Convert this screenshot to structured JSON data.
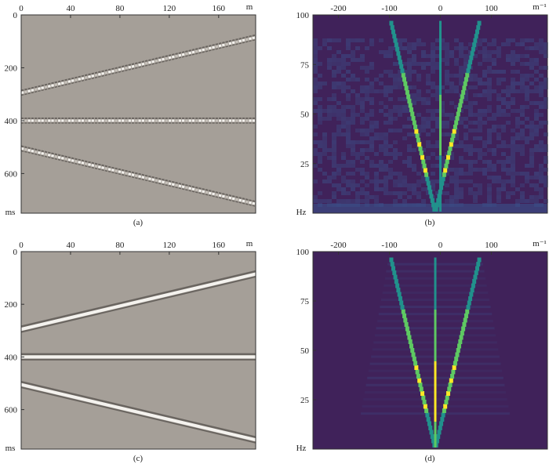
{
  "colors": {
    "seismic_background": "#a59f98",
    "event_bright": "#f4f2ee",
    "event_dark": "#6a6560",
    "fk_background": "#40225a",
    "fk_noise": "#3b528b",
    "fk_medium": "#21918c",
    "fk_high": "#5ec962",
    "fk_peak": "#fde725",
    "axis": "#333333"
  },
  "chart_data": [
    {
      "type": "heatmap",
      "panel": "a",
      "caption": "(a)",
      "content": "seismic section, noisy aliased events",
      "x_axis": {
        "unit": "m",
        "range": [
          0,
          190
        ],
        "ticks": [
          0,
          40,
          80,
          120,
          160
        ]
      },
      "y_axis": {
        "unit": "ms",
        "range": [
          0,
          750
        ],
        "ticks": [
          0,
          200,
          400,
          600
        ]
      },
      "events": [
        {
          "kind": "linear",
          "t_at_x0": 295,
          "t_at_xmax": 85
        },
        {
          "kind": "flat",
          "t_at_x0": 400,
          "t_at_xmax": 400
        },
        {
          "kind": "linear",
          "t_at_x0": 505,
          "t_at_xmax": 715
        }
      ]
    },
    {
      "type": "heatmap",
      "panel": "b",
      "caption": "(b)",
      "content": "f-k spectrum, noisy",
      "x_axis": {
        "unit": "m⁻¹",
        "range": [
          -250,
          210
        ],
        "ticks": [
          -200,
          -100,
          0,
          100
        ]
      },
      "y_axis": {
        "unit": "Hz",
        "range": [
          0,
          100
        ],
        "ticks": [
          25,
          50,
          75,
          100
        ]
      },
      "energy_branches": [
        {
          "name": "left",
          "k_at_f0": -10,
          "k_at_f100": -100
        },
        {
          "name": "right",
          "k_at_f0": -10,
          "k_at_f100": 80
        },
        {
          "name": "vertical",
          "k_at_f0": 0,
          "k_at_f100": 0
        }
      ]
    },
    {
      "type": "heatmap",
      "panel": "c",
      "caption": "(c)",
      "content": "seismic section, reconstructed clean events",
      "x_axis": {
        "unit": "m",
        "range": [
          0,
          190
        ],
        "ticks": [
          0,
          40,
          80,
          120,
          160
        ]
      },
      "y_axis": {
        "unit": "ms",
        "range": [
          0,
          750
        ],
        "ticks": [
          0,
          200,
          400,
          600
        ]
      },
      "events": [
        {
          "kind": "linear",
          "t_at_x0": 295,
          "t_at_xmax": 85
        },
        {
          "kind": "flat",
          "t_at_x0": 400,
          "t_at_xmax": 400
        },
        {
          "kind": "linear",
          "t_at_x0": 505,
          "t_at_xmax": 715
        }
      ]
    },
    {
      "type": "heatmap",
      "panel": "d",
      "caption": "(d)",
      "content": "f-k spectrum, reconstructed",
      "x_axis": {
        "unit": "m⁻¹",
        "range": [
          -250,
          210
        ],
        "ticks": [
          -200,
          -100,
          0,
          100
        ]
      },
      "y_axis": {
        "unit": "Hz",
        "range": [
          0,
          100
        ],
        "ticks": [
          25,
          50,
          75,
          100
        ]
      },
      "energy_branches": [
        {
          "name": "left",
          "k_at_f0": -10,
          "k_at_f100": -100
        },
        {
          "name": "right",
          "k_at_f0": -10,
          "k_at_f100": 80
        },
        {
          "name": "vertical",
          "k_at_f0": -10,
          "k_at_f100": -10
        }
      ]
    }
  ]
}
